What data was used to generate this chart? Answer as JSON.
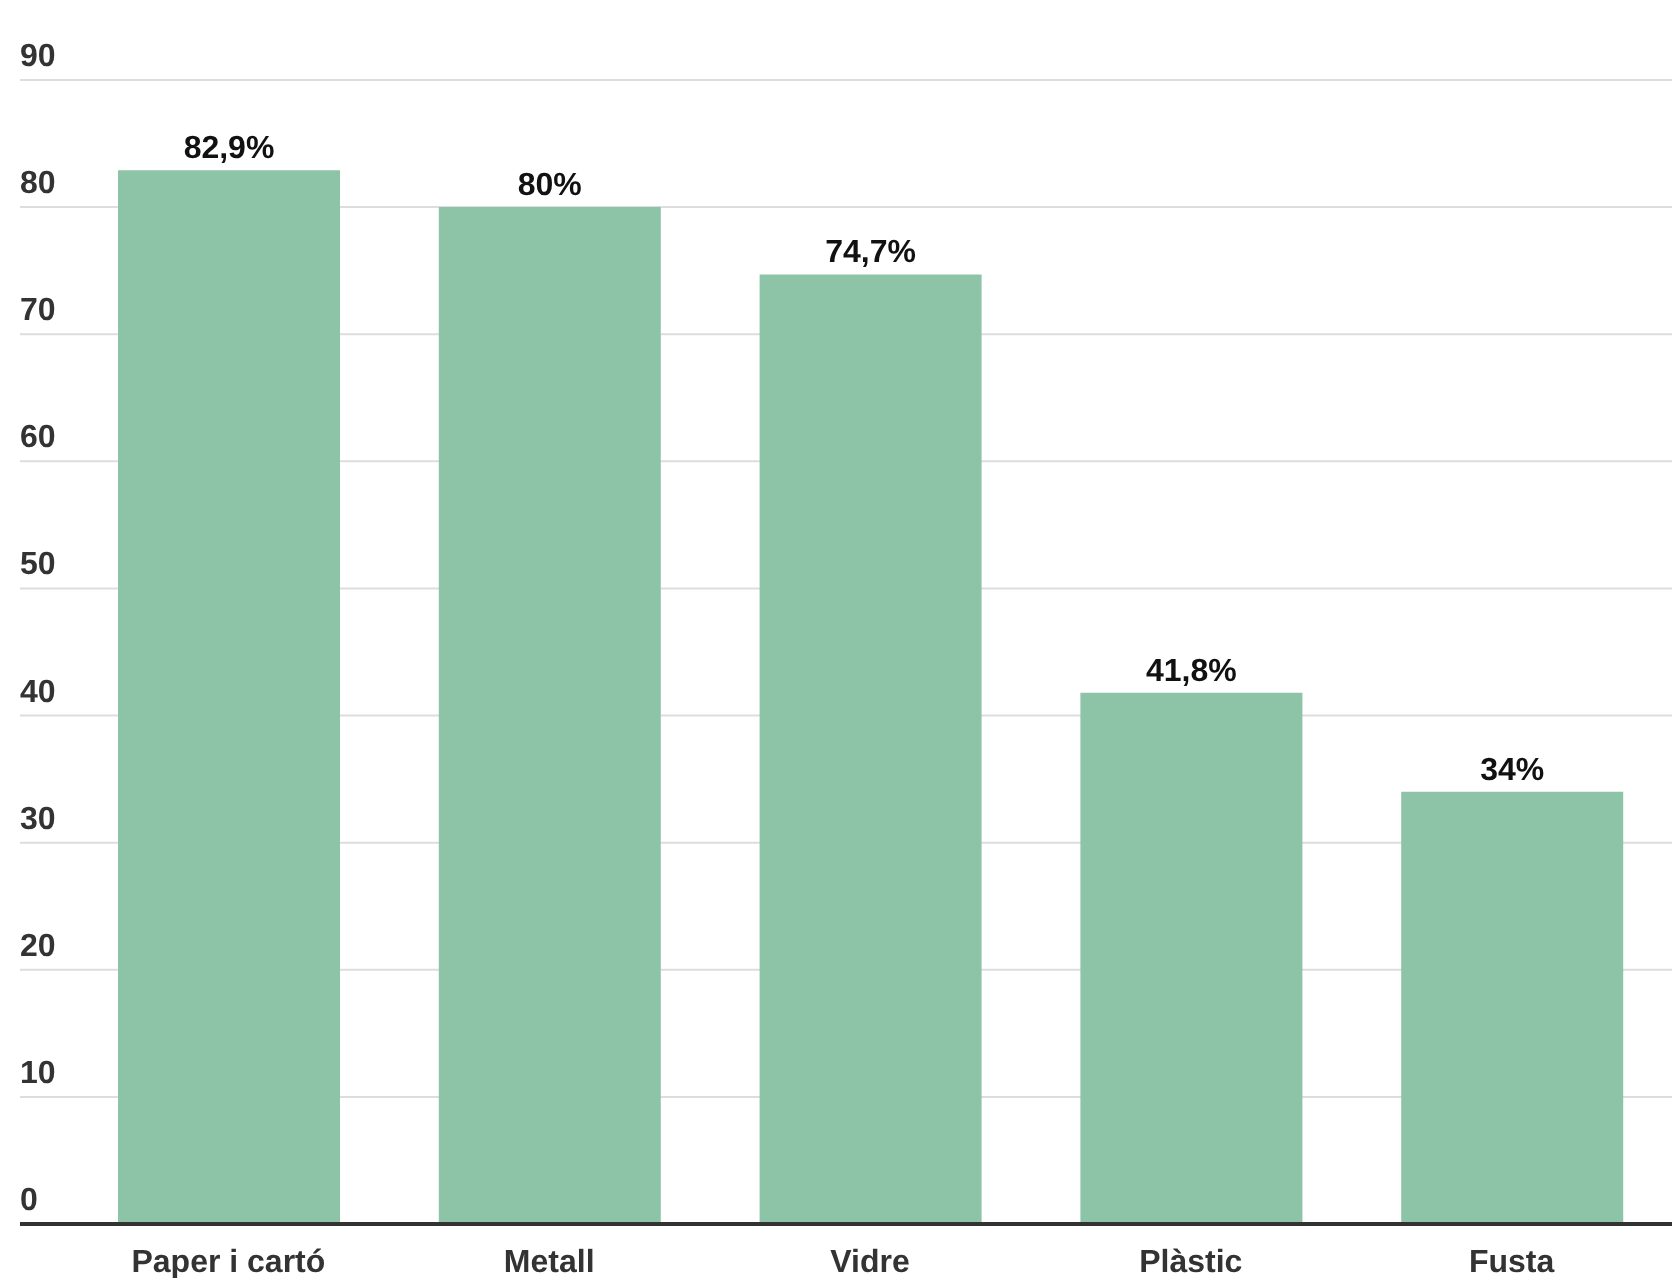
{
  "chart_data": {
    "type": "bar",
    "categories": [
      "Paper i cartó",
      "Metall",
      "Vidre",
      "Plàstic",
      "Fusta"
    ],
    "values": [
      82.9,
      80,
      74.7,
      41.8,
      34
    ],
    "value_labels": [
      "82,9%",
      "80%",
      "74,7%",
      "41,8%",
      "34%"
    ],
    "color": "#8dc3a7",
    "ylim": [
      0,
      90
    ],
    "yticks": [
      0,
      10,
      20,
      30,
      40,
      50,
      60,
      70,
      80,
      90
    ],
    "grid": "y"
  }
}
